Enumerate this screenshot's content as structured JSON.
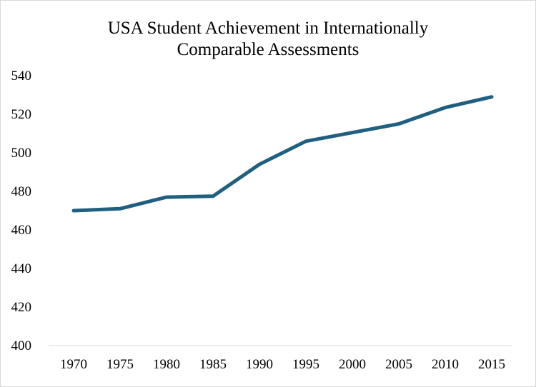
{
  "chart_data": {
    "type": "line",
    "title_lines": [
      "USA Student Achievement in Internationally",
      "Comparable Assessments"
    ],
    "xlabel": "",
    "ylabel": "",
    "categories": [
      "1970",
      "1975",
      "1980",
      "1985",
      "1990",
      "1995",
      "2000",
      "2005",
      "2010",
      "2015"
    ],
    "series": [
      {
        "values": [
          470,
          471,
          477,
          477.5,
          494,
          506,
          510.5,
          515,
          523.5,
          529
        ],
        "color": "#1f5f7f"
      }
    ],
    "ylim": [
      400,
      540
    ],
    "yticks": [
      400,
      420,
      440,
      460,
      480,
      500,
      520,
      540
    ],
    "grid": false,
    "legend": "none"
  }
}
